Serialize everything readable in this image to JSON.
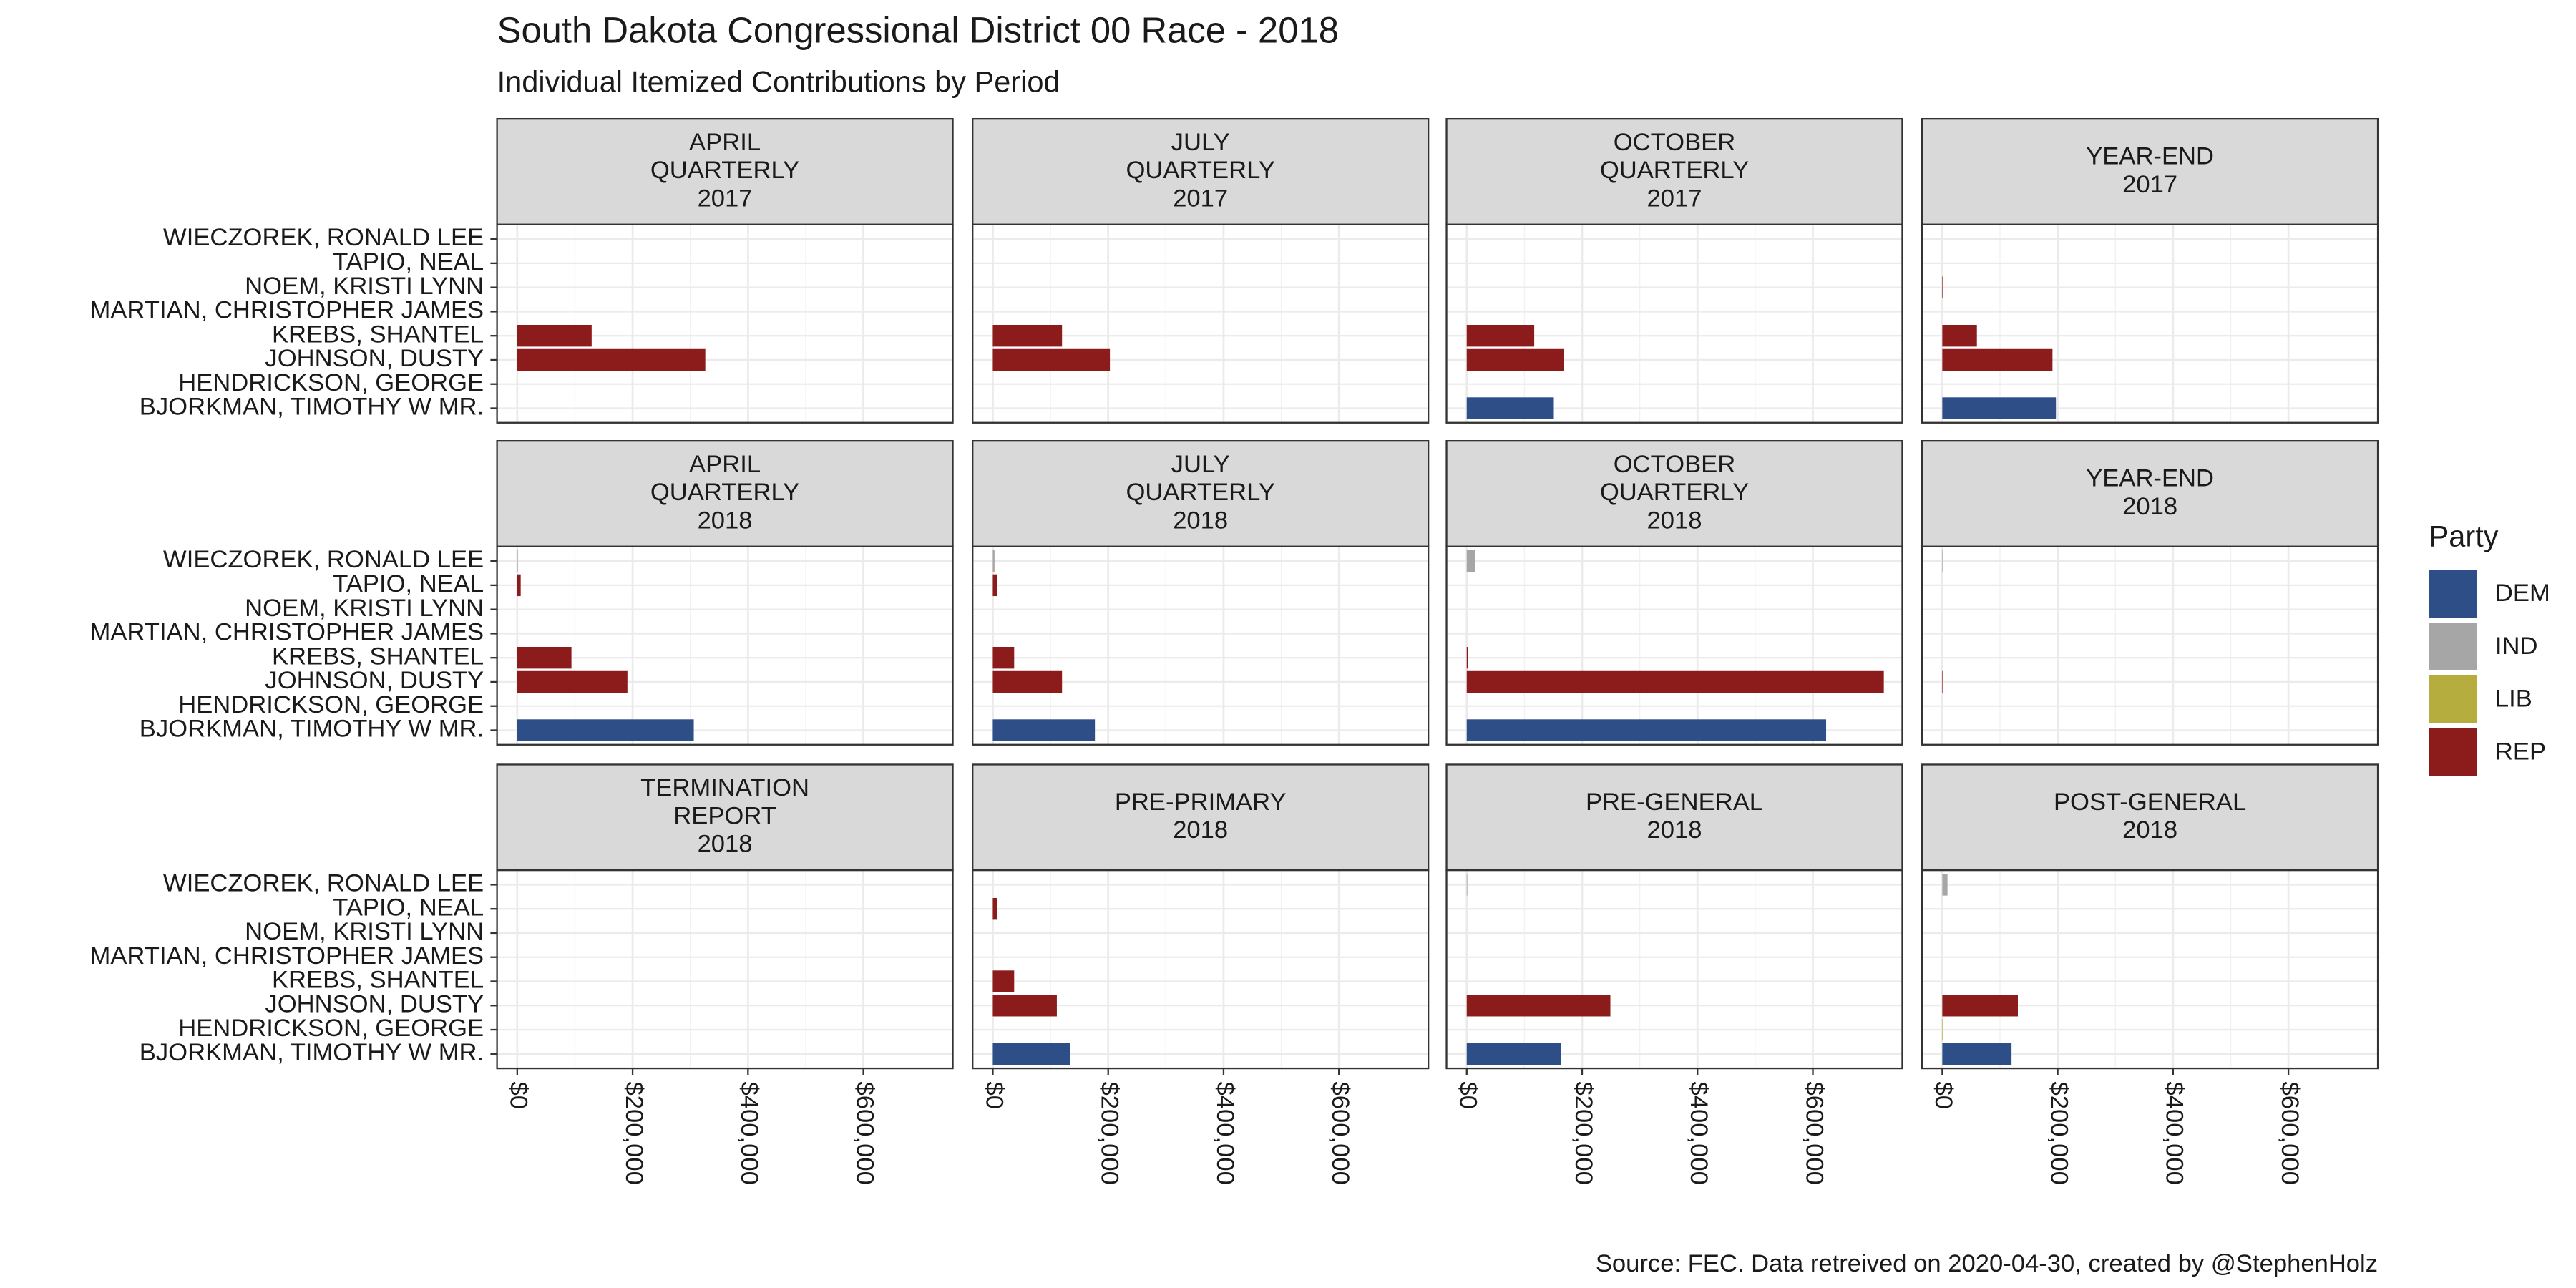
{
  "chart_data": {
    "type": "bar",
    "title": "South Dakota Congressional District 00 Race - 2018",
    "subtitle": "Individual Itemized Contributions by Period",
    "caption": "Source: FEC. Data retreived on 2020-04-30, created by @StephenHolz",
    "categories": [
      "WIECZOREK, RONALD LEE",
      "TAPIO, NEAL",
      "NOEM, KRISTI LYNN",
      "MARTIAN, CHRISTOPHER JAMES",
      "KREBS, SHANTEL",
      "JOHNSON, DUSTY",
      "HENDRICKSON, GEORGE",
      "BJORKMAN, TIMOTHY W MR."
    ],
    "category_party": [
      "IND",
      "REP",
      "REP",
      "REP",
      "REP",
      "REP",
      "LIB",
      "DEM"
    ],
    "xlim": [
      -35000,
      755000
    ],
    "xticks": [
      {
        "value": 0,
        "label": "$0"
      },
      {
        "value": 200000,
        "label": "$200,000"
      },
      {
        "value": 400000,
        "label": "$400,000"
      },
      {
        "value": 600000,
        "label": "$600,000"
      }
    ],
    "grid": true,
    "legend": {
      "title": "Party",
      "position": "right",
      "items": [
        {
          "name": "DEM",
          "color": "#2e4e88"
        },
        {
          "name": "IND",
          "color": "#a6a6a6"
        },
        {
          "name": "LIB",
          "color": "#b5ad3e"
        },
        {
          "name": "REP",
          "color": "#8c1b1b"
        }
      ]
    },
    "panels": [
      {
        "title": [
          "APRIL",
          "QUARTERLY",
          "2017"
        ],
        "values": [
          null,
          null,
          null,
          null,
          129000,
          326000,
          null,
          null
        ]
      },
      {
        "title": [
          "JULY",
          "QUARTERLY",
          "2017"
        ],
        "values": [
          null,
          null,
          null,
          null,
          120000,
          203000,
          null,
          null
        ]
      },
      {
        "title": [
          "OCTOBER",
          "QUARTERLY",
          "2017"
        ],
        "values": [
          null,
          null,
          null,
          null,
          117000,
          169000,
          null,
          151000
        ]
      },
      {
        "title": [
          "YEAR-END",
          "2017"
        ],
        "values": [
          null,
          null,
          1000,
          null,
          60000,
          191000,
          null,
          197000
        ]
      },
      {
        "title": [
          "APRIL",
          "QUARTERLY",
          "2018"
        ],
        "values": [
          1000,
          6000,
          null,
          null,
          94000,
          191000,
          null,
          306000
        ]
      },
      {
        "title": [
          "JULY",
          "QUARTERLY",
          "2018"
        ],
        "values": [
          3000,
          8000,
          null,
          null,
          37000,
          120000,
          null,
          177000
        ]
      },
      {
        "title": [
          "OCTOBER",
          "QUARTERLY",
          "2018"
        ],
        "values": [
          14000,
          null,
          null,
          null,
          2000,
          723000,
          null,
          623000
        ]
      },
      {
        "title": [
          "YEAR-END",
          "2018"
        ],
        "values": [
          1000,
          null,
          null,
          null,
          null,
          1000,
          null,
          null
        ]
      },
      {
        "title": [
          "TERMINATION",
          "REPORT",
          "2018"
        ],
        "values": [
          null,
          null,
          null,
          null,
          null,
          null,
          null,
          null
        ]
      },
      {
        "title": [
          "PRE-PRIMARY",
          "2018"
        ],
        "values": [
          null,
          8000,
          null,
          null,
          37000,
          111000,
          null,
          134000
        ]
      },
      {
        "title": [
          "PRE-GENERAL",
          "2018"
        ],
        "values": [
          1000,
          null,
          null,
          null,
          null,
          249000,
          null,
          163000
        ]
      },
      {
        "title": [
          "POST-GENERAL",
          "2018"
        ],
        "values": [
          9000,
          null,
          null,
          null,
          null,
          131000,
          2000,
          120000
        ]
      }
    ]
  }
}
